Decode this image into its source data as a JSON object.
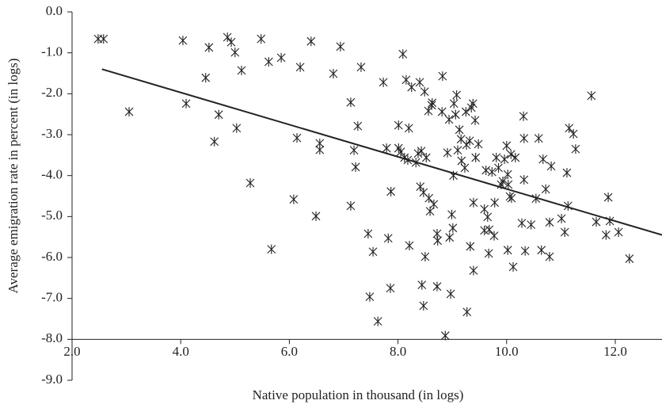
{
  "chart_data": {
    "type": "scatter",
    "x_label": "Native population in thousand (in logs)",
    "y_label": "Average emigration rate in percent (in logs)",
    "xlim": [
      2,
      12.86
    ],
    "ylim": [
      -9,
      0
    ],
    "xticks": [
      {
        "value": 2,
        "label": "2.0"
      },
      {
        "value": 4,
        "label": "4.0"
      },
      {
        "value": 6,
        "label": "6.0"
      },
      {
        "value": 8,
        "label": "8.0"
      },
      {
        "value": 10,
        "label": "10.0"
      },
      {
        "value": 12,
        "label": "12.0"
      }
    ],
    "yticks": [
      {
        "value": 0,
        "label": "0.0"
      },
      {
        "value": -1,
        "label": "-1.0"
      },
      {
        "value": -2,
        "label": "-2.0"
      },
      {
        "value": -3,
        "label": "-3.0"
      },
      {
        "value": -4,
        "label": "-4.0"
      },
      {
        "value": -5,
        "label": "-5.0"
      },
      {
        "value": -6,
        "label": "-6.0"
      },
      {
        "value": -7,
        "label": "-7.0"
      },
      {
        "value": -8,
        "label": "-8.0"
      },
      {
        "value": -9,
        "label": "-9.0"
      }
    ],
    "color": "#222222",
    "fit": {
      "x": [
        2.55,
        12.86
      ],
      "y": [
        -1.4,
        -5.45
      ]
    },
    "x": [
      2.48,
      2.58,
      3.05,
      4.04,
      4.1,
      4.46,
      4.52,
      4.62,
      4.7,
      4.86,
      4.93,
      5.0,
      5.03,
      5.12,
      5.28,
      5.48,
      5.62,
      5.67,
      5.85,
      6.08,
      6.14,
      6.2,
      6.4,
      6.49,
      6.56,
      6.56,
      6.81,
      6.94,
      7.13,
      7.13,
      7.19,
      7.22,
      7.26,
      7.32,
      7.45,
      7.48,
      7.54,
      7.63,
      7.73,
      7.79,
      7.82,
      7.87,
      7.86,
      8.01,
      8.01,
      8.05,
      8.09,
      8.12,
      8.15,
      8.2,
      8.18,
      8.21,
      8.25,
      8.33,
      8.37,
      8.4,
      8.41,
      8.43,
      8.44,
      8.47,
      8.47,
      8.5,
      8.49,
      8.52,
      8.56,
      8.57,
      8.59,
      8.62,
      8.63,
      8.66,
      8.72,
      8.72,
      8.73,
      8.81,
      8.82,
      8.87,
      8.91,
      8.94,
      8.95,
      8.97,
      8.99,
      9.01,
      9.03,
      9.02,
      9.06,
      9.08,
      9.1,
      9.13,
      9.16,
      9.17,
      9.23,
      9.26,
      9.25,
      9.27,
      9.32,
      9.33,
      9.35,
      9.38,
      9.39,
      9.39,
      9.42,
      9.43,
      9.48,
      9.59,
      9.59,
      9.62,
      9.65,
      9.67,
      9.68,
      9.73,
      9.77,
      9.78,
      9.81,
      9.85,
      9.9,
      9.93,
      9.96,
      10.0,
      10.02,
      10.02,
      10.03,
      10.06,
      10.08,
      10.09,
      10.12,
      10.16,
      10.28,
      10.31,
      10.32,
      10.32,
      10.34,
      10.45,
      10.54,
      10.59,
      10.64,
      10.67,
      10.72,
      10.79,
      10.79,
      10.82,
      11.01,
      11.07,
      11.13,
      11.11,
      11.15,
      11.23,
      11.27,
      11.56,
      11.65,
      11.83,
      11.87,
      11.9,
      12.06,
      12.26
    ],
    "y": [
      -0.66,
      -0.66,
      -2.44,
      -0.7,
      -2.24,
      -1.61,
      -0.87,
      -3.17,
      -2.51,
      -0.62,
      -0.74,
      -0.99,
      -2.84,
      -1.43,
      -4.18,
      -0.66,
      -1.22,
      -5.8,
      -1.12,
      -4.58,
      -3.08,
      -1.35,
      -0.72,
      -4.99,
      -3.21,
      -3.37,
      -1.51,
      -0.85,
      -2.21,
      -4.74,
      -3.38,
      -3.79,
      -2.79,
      -1.35,
      -5.42,
      -6.96,
      -5.86,
      -7.56,
      -1.72,
      -3.33,
      -5.53,
      -4.39,
      -6.75,
      -3.33,
      -2.77,
      -3.42,
      -1.03,
      -3.56,
      -1.66,
      -2.84,
      -3.62,
      -5.71,
      -1.84,
      -3.68,
      -3.46,
      -1.72,
      -4.27,
      -3.4,
      -6.67,
      -7.18,
      -4.41,
      -5.98,
      -1.95,
      -3.56,
      -2.42,
      -4.55,
      -4.87,
      -2.28,
      -2.22,
      -4.7,
      -6.71,
      -5.42,
      -5.59,
      -2.44,
      -1.57,
      -7.91,
      -3.44,
      -2.63,
      -5.51,
      -6.89,
      -4.95,
      -5.28,
      -2.24,
      -4.0,
      -2.51,
      -2.03,
      -3.38,
      -2.88,
      -3.11,
      -3.64,
      -3.81,
      -3.25,
      -2.44,
      -7.33,
      -3.15,
      -5.73,
      -2.34,
      -2.24,
      -4.66,
      -6.32,
      -2.65,
      -3.56,
      -3.23,
      -4.82,
      -5.34,
      -3.87,
      -5.01,
      -5.9,
      -5.32,
      -3.91,
      -5.47,
      -4.66,
      -3.56,
      -3.81,
      -4.22,
      -4.14,
      -3.6,
      -3.27,
      -3.97,
      -5.82,
      -4.22,
      -4.51,
      -3.48,
      -4.55,
      -6.23,
      -3.56,
      -5.16,
      -2.55,
      -3.09,
      -4.1,
      -5.84,
      -5.2,
      -4.56,
      -3.09,
      -5.82,
      -3.6,
      -4.33,
      -5.14,
      -5.98,
      -3.77,
      -5.05,
      -5.38,
      -4.74,
      -3.93,
      -2.84,
      -2.98,
      -3.35,
      -2.05,
      -5.13,
      -5.45,
      -4.53,
      -5.11,
      -5.38,
      -6.03
    ]
  }
}
